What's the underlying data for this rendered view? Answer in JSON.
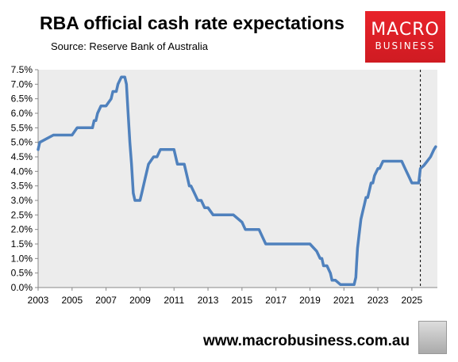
{
  "header": {
    "title": "RBA official cash rate expectations",
    "source": "Source: Reserve Bank of Australia"
  },
  "logo": {
    "line1": "MACRO",
    "line2": "BUSINESS"
  },
  "footer": {
    "url": "www.macrobusiness.com.au"
  },
  "colors": {
    "line": "#4f81bd",
    "plot_bg": "#ececec",
    "logo": "#e8232a"
  },
  "chart_data": {
    "type": "line",
    "title": "RBA official cash rate expectations",
    "xlabel": "",
    "ylabel": "",
    "xlim": [
      2003,
      2026.5
    ],
    "ylim": [
      0,
      7.5
    ],
    "x_ticks": [
      "2003",
      "2005",
      "2007",
      "2009",
      "2011",
      "2013",
      "2015",
      "2017",
      "2019",
      "2021",
      "2023",
      "2025"
    ],
    "y_ticks": [
      "0.0%",
      "0.5%",
      "1.0%",
      "1.5%",
      "2.0%",
      "2.5%",
      "3.0%",
      "3.5%",
      "4.0%",
      "4.5%",
      "5.0%",
      "5.5%",
      "6.0%",
      "6.5%",
      "7.0%",
      "7.5%"
    ],
    "grid": false,
    "legend": "none",
    "vertical_marker_x": 2025.5,
    "series": [
      {
        "x": [
          2003.0,
          2003.1,
          2003.9,
          2003.95,
          2004.0,
          2004.1,
          2005.0,
          2005.3,
          2005.4,
          2005.6,
          2005.7,
          2006.2,
          2006.3,
          2006.4,
          2006.5,
          2006.7,
          2006.8,
          2006.9,
          2007.0,
          2007.3,
          2007.4,
          2007.6,
          2007.7,
          2007.9,
          2008.0,
          2008.1,
          2008.2,
          2008.3,
          2008.4,
          2008.5,
          2008.6,
          2008.7,
          2009.0,
          2009.1,
          2009.3,
          2009.5,
          2009.8,
          2010.0,
          2010.2,
          2010.4,
          2010.6,
          2011.0,
          2011.2,
          2011.6,
          2011.8,
          2011.9,
          2012.0,
          2012.2,
          2012.4,
          2012.6,
          2012.8,
          2013.0,
          2013.3,
          2013.6,
          2014.0,
          2014.5,
          2015.0,
          2015.2,
          2015.4,
          2016.0,
          2016.2,
          2016.4,
          2017.0,
          2018.0,
          2018.7,
          2019.0,
          2019.4,
          2019.6,
          2019.7,
          2019.8,
          2020.0,
          2020.2,
          2020.3,
          2020.5,
          2020.8,
          2021.0,
          2021.5,
          2021.6,
          2021.7,
          2021.75,
          2021.8,
          2021.9,
          2022.0,
          2022.1,
          2022.2,
          2022.3,
          2022.4,
          2022.5,
          2022.6,
          2022.7,
          2022.8,
          2023.0,
          2023.1,
          2023.3,
          2023.5,
          2023.7,
          2023.9,
          2024.2,
          2024.4,
          2024.6,
          2024.8,
          2025.0,
          2025.2,
          2025.4,
          2025.5,
          2025.7,
          2025.9,
          2026.1,
          2026.3,
          2026.4
        ],
        "y": [
          4.75,
          5.0,
          5.25,
          5.25,
          5.25,
          5.25,
          5.25,
          5.5,
          5.5,
          5.5,
          5.5,
          5.5,
          5.75,
          5.75,
          6.0,
          6.25,
          6.25,
          6.25,
          6.25,
          6.5,
          6.75,
          6.75,
          7.0,
          7.25,
          7.25,
          7.25,
          7.0,
          6.0,
          5.0,
          4.25,
          3.25,
          3.0,
          3.0,
          3.25,
          3.75,
          4.25,
          4.5,
          4.5,
          4.75,
          4.75,
          4.75,
          4.75,
          4.25,
          4.25,
          3.75,
          3.5,
          3.5,
          3.25,
          3.0,
          3.0,
          2.75,
          2.75,
          2.5,
          2.5,
          2.5,
          2.5,
          2.25,
          2.0,
          2.0,
          2.0,
          1.75,
          1.5,
          1.5,
          1.5,
          1.5,
          1.5,
          1.25,
          1.0,
          1.0,
          0.75,
          0.75,
          0.5,
          0.25,
          0.25,
          0.1,
          0.1,
          0.1,
          0.1,
          0.35,
          0.85,
          1.35,
          1.85,
          2.35,
          2.6,
          2.85,
          3.1,
          3.1,
          3.35,
          3.6,
          3.6,
          3.85,
          4.1,
          4.1,
          4.35,
          4.35,
          4.35,
          4.35,
          4.35,
          4.35,
          4.1,
          3.85,
          3.6,
          3.6,
          3.6,
          4.1,
          4.2,
          4.35,
          4.5,
          4.75,
          4.85
        ]
      }
    ]
  }
}
